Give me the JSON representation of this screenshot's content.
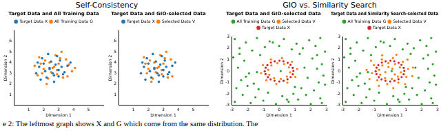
{
  "figure": {
    "group_titles": [
      "Self-Consistency",
      "GIO vs. Similarity Search"
    ],
    "caption": "e 2: The leftmost graph shows X and G which come from the same distribution. The"
  },
  "chart_data": [
    {
      "type": "scatter",
      "title": "Target Data and All Training Data",
      "x_label": "Dimension 1",
      "y_label": "Dimension 2",
      "xlim": [
        0,
        6
      ],
      "xticks": [
        1,
        2,
        3,
        4,
        5
      ],
      "ylim": [
        0,
        7
      ],
      "yticks": [
        1,
        2,
        3,
        4,
        5,
        6
      ],
      "grid": false,
      "legend": "top",
      "series": [
        {
          "name": "Target Data X",
          "color": "#1f77b4",
          "marker": "circle",
          "x": [
            2.1,
            2.8,
            3.3,
            1.7,
            2.5,
            3.0,
            2.2,
            3.6,
            1.9,
            2.7,
            3.1,
            2.4,
            1.5,
            3.4,
            2.9,
            2.0,
            2.6,
            3.8,
            1.8,
            2.3,
            3.2,
            2.7,
            1.6,
            3.0,
            2.4
          ],
          "values": [
            3.2,
            3.8,
            2.9,
            3.6,
            4.1,
            3.3,
            2.6,
            3.7,
            4.4,
            2.8,
            4.2,
            3.5,
            3.0,
            3.1,
            4.6,
            3.9,
            3.0,
            4.0,
            2.4,
            4.8,
            3.6,
            2.2,
            4.0,
            2.7,
            3.4
          ]
        },
        {
          "name": "All Training Data G",
          "color": "#ff7f0e",
          "marker": "circle",
          "x": [
            2.6,
            1.9,
            3.5,
            2.3,
            3.0,
            1.4,
            2.8,
            3.9,
            2.1,
            3.3,
            2.5,
            1.7,
            3.7,
            2.9,
            2.0,
            3.2,
            2.4,
            1.6,
            3.6,
            2.7,
            2.2,
            3.1,
            4.1,
            1.8,
            2.9
          ],
          "values": [
            3.5,
            3.0,
            4.3,
            2.5,
            3.9,
            3.7,
            4.7,
            3.2,
            4.2,
            2.6,
            3.1,
            4.5,
            3.8,
            2.9,
            3.4,
            5.0,
            4.0,
            2.8,
            2.7,
            3.6,
            2.0,
            4.4,
            3.5,
            3.9,
            3.3
          ]
        }
      ]
    },
    {
      "type": "scatter",
      "title": "Target Data and GIO-selected Data",
      "x_label": "Dimension 1",
      "y_label": "Dimension 2",
      "xlim": [
        0,
        6
      ],
      "xticks": [
        1,
        2,
        3,
        4,
        5
      ],
      "ylim": [
        0,
        7
      ],
      "yticks": [
        1,
        2,
        3,
        4,
        5,
        6
      ],
      "grid": false,
      "legend": "top",
      "series": [
        {
          "name": "Target Data X",
          "color": "#1f77b4",
          "marker": "circle",
          "x": [
            2.1,
            2.8,
            3.3,
            1.7,
            2.5,
            3.0,
            2.2,
            3.6,
            1.9,
            2.7,
            3.1,
            2.4,
            1.5,
            3.4,
            2.9,
            2.0,
            2.6,
            3.8,
            1.8,
            2.3,
            3.2,
            2.7,
            1.6,
            3.0,
            2.4
          ],
          "values": [
            3.2,
            3.8,
            2.9,
            3.6,
            4.1,
            3.3,
            2.6,
            3.7,
            4.4,
            2.8,
            4.2,
            3.5,
            3.0,
            3.1,
            4.6,
            3.9,
            3.0,
            4.0,
            2.4,
            4.8,
            3.6,
            2.2,
            4.0,
            2.7,
            3.4
          ]
        },
        {
          "name": "Selected Data V",
          "color": "#ff7f0e",
          "marker": "circle",
          "x": [
            2.6,
            1.9,
            3.5,
            2.3,
            3.0,
            2.8,
            2.1,
            3.3,
            2.5,
            1.7,
            2.9,
            2.0,
            3.2,
            2.4,
            3.6,
            2.7,
            3.1,
            1.8,
            2.9,
            2.2
          ],
          "values": [
            3.5,
            3.0,
            4.3,
            2.5,
            3.9,
            4.7,
            4.2,
            2.6,
            3.1,
            4.5,
            2.9,
            3.4,
            5.0,
            4.0,
            2.7,
            3.6,
            4.4,
            3.9,
            3.3,
            2.2
          ]
        }
      ]
    },
    {
      "type": "scatter",
      "title": "Target Data and GIO-selected Data",
      "x_label": "Dimension 1",
      "y_label": "Dimension 2",
      "xlim": [
        -3,
        3
      ],
      "xticks": [
        -3,
        -2,
        -1,
        0,
        1,
        2,
        3
      ],
      "ylim": [
        -3,
        3
      ],
      "yticks": [
        -3,
        -2,
        -1,
        0,
        1,
        2,
        3
      ],
      "grid": false,
      "legend": "top",
      "series": [
        {
          "name": "All Training Data G",
          "color": "#2ca02c",
          "marker": "circle",
          "x": [
            -2.8,
            -2.1,
            -1.4,
            -0.6,
            0.3,
            1.1,
            1.9,
            2.6,
            -2.5,
            -1.7,
            -0.9,
            0.0,
            0.8,
            1.5,
            2.3,
            2.9,
            -2.9,
            -2.2,
            -1.2,
            1.3,
            2.1,
            2.7,
            -2.6,
            -1.9,
            2.4,
            2.8,
            -2.4,
            -1.6,
            1.8,
            2.5,
            -2.7,
            -2.0,
            -1.3,
            1.4,
            2.2,
            2.9,
            -2.3,
            -1.5,
            -0.7,
            0.2,
            0.9,
            1.7,
            2.6,
            -2.8,
            -1.8,
            -1.0,
            -0.2,
            0.6,
            1.2,
            2.0,
            2.7,
            -2.5,
            -1.4,
            -0.4,
            0.5,
            1.6,
            2.4,
            -2.1,
            0.1,
            1.0
          ],
          "values": [
            2.8,
            2.5,
            2.9,
            2.6,
            2.8,
            2.4,
            2.7,
            2.9,
            2.0,
            1.8,
            2.1,
            2.2,
            1.9,
            2.0,
            2.2,
            1.7,
            1.2,
            0.9,
            1.4,
            1.5,
            1.1,
            0.6,
            0.3,
            -0.2,
            0.2,
            -0.4,
            -0.8,
            -1.1,
            -0.6,
            -1.0,
            -1.5,
            -1.3,
            -1.6,
            -1.5,
            -1.7,
            -1.2,
            -2.1,
            -2.3,
            -1.9,
            -2.2,
            -2.0,
            -2.1,
            -2.4,
            -2.7,
            -2.8,
            -2.6,
            -2.9,
            -2.7,
            -2.5,
            -2.9,
            -2.8,
            1.5,
            -0.1,
            2.5,
            -2.5,
            0.3,
            1.4,
            -0.5,
            0.0,
            -1.4
          ]
        },
        {
          "name": "Selected Data V",
          "color": "#ff7f0e",
          "marker": "circle",
          "x": [
            1.14,
            0.62,
            0.81,
            0.32,
            0.18,
            -0.11,
            -0.52,
            -0.49,
            -1.02,
            -0.69,
            -1.14,
            -0.62,
            -0.81,
            -0.32,
            -0.18,
            0.11,
            0.52,
            0.49,
            1.02,
            0.69
          ],
          "values": [
            0.18,
            0.32,
            0.81,
            0.62,
            1.14,
            0.69,
            1.02,
            0.49,
            0.52,
            0.11,
            -0.18,
            -0.32,
            -0.81,
            -0.62,
            -1.14,
            -0.69,
            -1.02,
            -0.49,
            -0.52,
            -0.11
          ]
        },
        {
          "name": "Target Data X",
          "color": "#d62728",
          "marker": "circle",
          "x": [
            0.9,
            0.86,
            0.72,
            0.54,
            0.27,
            0.02,
            -0.28,
            -0.52,
            -0.74,
            -0.85,
            -0.91,
            -0.86,
            -0.71,
            -0.54,
            -0.29,
            0.01,
            0.28,
            0.53,
            0.73,
            0.86
          ],
          "values": [
            0.01,
            0.28,
            0.54,
            0.72,
            0.86,
            0.9,
            0.85,
            0.74,
            0.52,
            0.29,
            -0.02,
            -0.27,
            -0.54,
            -0.73,
            -0.85,
            -0.91,
            -0.86,
            -0.72,
            -0.53,
            -0.28
          ]
        }
      ]
    },
    {
      "type": "scatter",
      "title": "Target Data and Similarity Search-selected Data",
      "x_label": "Dimension 1",
      "y_label": "Dimension 2",
      "xlim": [
        -3,
        3
      ],
      "xticks": [
        -3,
        -2,
        -1,
        0,
        1,
        2,
        3
      ],
      "ylim": [
        -3,
        3
      ],
      "yticks": [
        -3,
        -2,
        -1,
        0,
        1,
        2,
        3
      ],
      "grid": false,
      "legend": "top",
      "series": [
        {
          "name": "All Training Data G",
          "color": "#2ca02c",
          "marker": "circle",
          "x": [
            -2.8,
            -2.1,
            -1.4,
            -0.6,
            0.3,
            1.1,
            1.9,
            2.6,
            -2.5,
            -1.7,
            -0.9,
            0.0,
            0.8,
            1.5,
            2.3,
            2.9,
            -2.9,
            -2.2,
            -1.2,
            1.3,
            2.1,
            2.7,
            -2.6,
            -1.9,
            2.4,
            2.8,
            -2.4,
            -1.6,
            1.8,
            2.5,
            -2.7,
            -2.0,
            -1.3,
            1.4,
            2.2,
            2.9,
            -2.3,
            -1.5,
            -0.7,
            0.2,
            0.9,
            1.7,
            2.6,
            -2.8,
            -1.8,
            -1.0,
            -0.2,
            0.6,
            1.2,
            2.0,
            2.7,
            -2.5,
            -1.4,
            -0.4,
            0.5,
            1.6,
            2.4,
            -2.1,
            0.1,
            1.0
          ],
          "values": [
            2.8,
            2.5,
            2.9,
            2.6,
            2.8,
            2.4,
            2.7,
            2.9,
            2.0,
            1.8,
            2.1,
            2.2,
            1.9,
            2.0,
            2.2,
            1.7,
            1.2,
            0.9,
            1.4,
            1.5,
            1.1,
            0.6,
            0.3,
            -0.2,
            0.2,
            -0.4,
            -0.8,
            -1.1,
            -0.6,
            -1.0,
            -1.5,
            -1.3,
            -1.6,
            -1.5,
            -1.7,
            -1.2,
            -2.1,
            -2.3,
            -1.9,
            -2.2,
            -2.0,
            -2.1,
            -2.4,
            -2.7,
            -2.8,
            -2.6,
            -2.9,
            -2.7,
            -2.5,
            -2.9,
            -2.8,
            1.5,
            -0.1,
            2.5,
            -2.5,
            0.3,
            1.4,
            -0.5,
            0.0,
            -1.4
          ]
        },
        {
          "name": "Selected Data V",
          "color": "#ff7f0e",
          "marker": "circle",
          "x": [
            1.14,
            0.62,
            0.81,
            0.32,
            0.18,
            -0.11,
            -0.52,
            -0.49,
            -1.02,
            -0.69,
            -1.14,
            -0.62,
            -0.81,
            -0.32,
            -0.18,
            0.11,
            0.52,
            0.49,
            1.02,
            0.69,
            1.45,
            1.1,
            0.4,
            -0.5,
            -1.2,
            -1.48,
            -1.3,
            -0.7,
            0.2,
            0.95,
            1.4,
            0.15,
            -0.3,
            0.3,
            -0.1
          ],
          "values": [
            0.18,
            0.32,
            0.81,
            0.62,
            1.14,
            0.69,
            1.02,
            0.49,
            0.52,
            0.11,
            -0.18,
            -0.32,
            -0.81,
            -0.62,
            -1.14,
            -0.69,
            -1.02,
            -0.49,
            -0.52,
            -0.11,
            0.3,
            1.0,
            1.42,
            1.38,
            0.9,
            0.1,
            -0.7,
            -1.3,
            -1.5,
            -1.15,
            -0.45,
            0.2,
            -0.1,
            -0.3,
            0.35
          ]
        },
        {
          "name": "Target Data X",
          "color": "#d62728",
          "marker": "circle",
          "x": [
            0.9,
            0.86,
            0.72,
            0.54,
            0.27,
            0.02,
            -0.28,
            -0.52,
            -0.74,
            -0.85,
            -0.91,
            -0.86,
            -0.71,
            -0.54,
            -0.29,
            0.01,
            0.28,
            0.53,
            0.73,
            0.86
          ],
          "values": [
            0.01,
            0.28,
            0.54,
            0.72,
            0.86,
            0.9,
            0.85,
            0.74,
            0.52,
            0.29,
            -0.02,
            -0.27,
            -0.54,
            -0.73,
            -0.85,
            -0.91,
            -0.86,
            -0.72,
            -0.53,
            -0.28
          ]
        }
      ]
    }
  ]
}
